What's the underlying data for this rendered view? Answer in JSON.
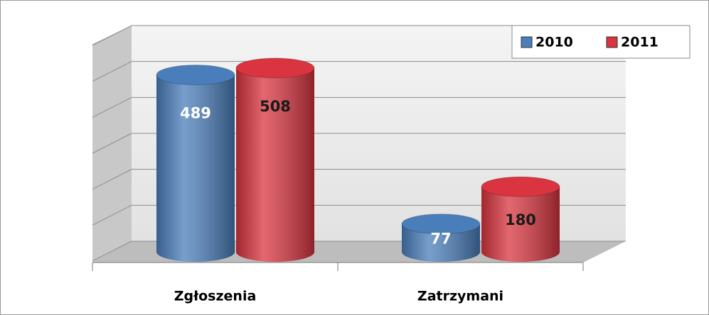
{
  "chart_data": {
    "type": "bar",
    "categories": [
      "Zgłoszenia",
      "Zatrzymani"
    ],
    "series": [
      {
        "name": "2010",
        "color": "#4a7ebb",
        "values": [
          489,
          77
        ]
      },
      {
        "name": "2011",
        "color": "#d9343f",
        "values": [
          508,
          180
        ]
      }
    ],
    "ylim": [
      0,
      600
    ],
    "yticks": [
      0,
      100,
      200,
      300,
      400,
      500,
      600
    ],
    "grid": true,
    "legend": "top-right"
  }
}
